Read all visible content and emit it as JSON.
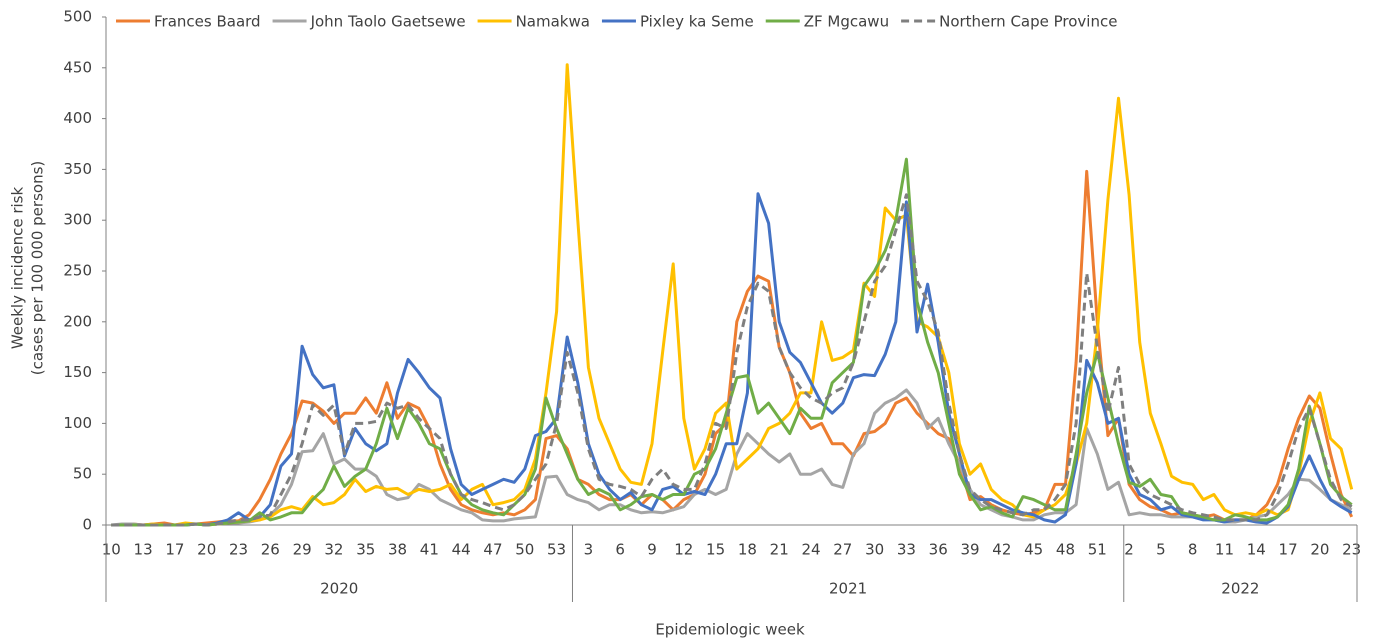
{
  "chart_data": {
    "type": "line",
    "y_label": [
      "Weekly incidence risk",
      "(cases per 100 000 persons)"
    ],
    "x_label": "Epidemiologic week",
    "categories": [
      "10",
      null,
      null,
      "13",
      null,
      null,
      "17",
      null,
      null,
      "20",
      null,
      null,
      "23",
      null,
      null,
      "26",
      null,
      null,
      "29",
      null,
      null,
      "32",
      null,
      null,
      "35",
      null,
      null,
      "38",
      null,
      null,
      "41",
      null,
      null,
      "44",
      null,
      null,
      "47",
      null,
      null,
      "50",
      null,
      null,
      "53",
      null,
      null,
      "3",
      null,
      null,
      "6",
      null,
      null,
      "9",
      null,
      null,
      "12",
      null,
      null,
      "15",
      null,
      null,
      "18",
      null,
      null,
      "21",
      null,
      null,
      "24",
      null,
      null,
      "27",
      null,
      null,
      "30",
      null,
      null,
      "33",
      null,
      null,
      "36",
      null,
      null,
      "39",
      null,
      null,
      "42",
      null,
      null,
      "45",
      null,
      null,
      "48",
      null,
      null,
      "51",
      null,
      null,
      "2",
      null,
      null,
      "5",
      null,
      null,
      "8",
      null,
      null,
      "11",
      null,
      null,
      "14",
      null,
      null,
      "17",
      null,
      null,
      "20",
      null,
      null,
      "23"
    ],
    "x_groups": [
      {
        "label": "2020",
        "size": 44
      },
      {
        "label": "2021",
        "size": 52
      },
      {
        "label": "2022",
        "size": 22
      }
    ],
    "ylim": [
      0,
      500
    ],
    "yticks": [
      0,
      50,
      100,
      150,
      200,
      250,
      300,
      350,
      400,
      450,
      500
    ],
    "grid": false,
    "legend": "top",
    "series": [
      {
        "name": "Frances Baard",
        "color": "#ED7D31",
        "dashed": false,
        "values": [
          0,
          0,
          1,
          0,
          1,
          2,
          0,
          1,
          1,
          2,
          3,
          4,
          4,
          10,
          25,
          45,
          70,
          90,
          122,
          120,
          112,
          100,
          110,
          110,
          125,
          110,
          140,
          105,
          120,
          115,
          95,
          60,
          35,
          20,
          15,
          12,
          10,
          12,
          10,
          15,
          25,
          85,
          88,
          75,
          45,
          40,
          30,
          25,
          25,
          30,
          20,
          30,
          25,
          15,
          25,
          30,
          50,
          90,
          100,
          200,
          230,
          245,
          240,
          175,
          150,
          110,
          95,
          100,
          80,
          80,
          68,
          90,
          92,
          100,
          120,
          125,
          110,
          100,
          90,
          85,
          60,
          25,
          28,
          20,
          15,
          12,
          10,
          12,
          15,
          40,
          40,
          160,
          348,
          200,
          88,
          105,
          40,
          25,
          18,
          15,
          10,
          12,
          10,
          8,
          10,
          5,
          5,
          5,
          10,
          20,
          40,
          75,
          105,
          127,
          115,
          70,
          30,
          8
        ]
      },
      {
        "name": "John Taolo Gaetsewe",
        "color": "#A5A5A5",
        "dashed": false,
        "values": [
          0,
          1,
          1,
          0,
          0,
          0,
          0,
          0,
          1,
          0,
          1,
          2,
          2,
          3,
          5,
          10,
          20,
          40,
          72,
          73,
          90,
          60,
          65,
          55,
          55,
          48,
          30,
          25,
          27,
          40,
          35,
          25,
          20,
          15,
          12,
          5,
          4,
          4,
          6,
          7,
          8,
          47,
          48,
          30,
          25,
          22,
          15,
          20,
          20,
          15,
          12,
          13,
          12,
          15,
          18,
          30,
          35,
          30,
          35,
          70,
          90,
          80,
          70,
          62,
          70,
          50,
          50,
          55,
          40,
          37,
          70,
          80,
          110,
          120,
          125,
          133,
          120,
          95,
          105,
          80,
          60,
          35,
          20,
          15,
          10,
          8,
          5,
          5,
          10,
          12,
          12,
          20,
          95,
          70,
          35,
          42,
          10,
          12,
          10,
          10,
          8,
          8,
          8,
          6,
          5,
          3,
          3,
          5,
          8,
          10,
          20,
          30,
          45,
          44,
          35,
          25,
          20,
          15
        ]
      },
      {
        "name": "Namakwa",
        "color": "#FFC000",
        "dashed": false,
        "values": [
          0,
          0,
          0,
          0,
          1,
          0,
          0,
          2,
          1,
          0,
          1,
          2,
          3,
          4,
          5,
          8,
          15,
          18,
          15,
          28,
          20,
          22,
          30,
          45,
          33,
          38,
          35,
          36,
          30,
          35,
          33,
          35,
          40,
          25,
          35,
          40,
          20,
          22,
          25,
          35,
          65,
          130,
          210,
          453,
          300,
          155,
          105,
          80,
          55,
          42,
          40,
          80,
          170,
          257,
          105,
          55,
          75,
          110,
          120,
          55,
          65,
          75,
          95,
          100,
          110,
          130,
          130,
          200,
          162,
          165,
          172,
          238,
          225,
          312,
          300,
          305,
          200,
          195,
          185,
          150,
          80,
          50,
          60,
          35,
          25,
          20,
          10,
          8,
          15,
          20,
          30,
          60,
          100,
          190,
          320,
          420,
          325,
          180,
          110,
          80,
          48,
          42,
          40,
          25,
          30,
          15,
          10,
          12,
          10,
          15,
          10,
          15,
          50,
          100,
          130,
          85,
          75,
          35
        ]
      },
      {
        "name": "Pixley ka Seme",
        "color": "#4472C4",
        "dashed": false,
        "values": [
          0,
          0,
          0,
          0,
          0,
          0,
          0,
          0,
          1,
          0,
          2,
          5,
          12,
          5,
          8,
          20,
          58,
          70,
          176,
          148,
          135,
          138,
          68,
          95,
          80,
          73,
          80,
          130,
          163,
          150,
          135,
          125,
          75,
          40,
          30,
          35,
          40,
          45,
          42,
          55,
          88,
          92,
          105,
          185,
          140,
          80,
          50,
          35,
          25,
          32,
          20,
          15,
          35,
          38,
          30,
          33,
          30,
          50,
          80,
          80,
          130,
          326,
          297,
          200,
          170,
          160,
          140,
          120,
          110,
          120,
          145,
          148,
          147,
          168,
          200,
          318,
          190,
          237,
          180,
          110,
          70,
          30,
          25,
          25,
          20,
          15,
          12,
          10,
          5,
          3,
          10,
          60,
          162,
          140,
          100,
          105,
          50,
          30,
          25,
          15,
          18,
          10,
          8,
          5,
          5,
          3,
          5,
          5,
          3,
          2,
          8,
          18,
          45,
          68,
          45,
          25,
          18,
          12
        ]
      },
      {
        "name": "ZF Mgcawu",
        "color": "#70AD47",
        "dashed": false,
        "values": [
          0,
          0,
          0,
          0,
          0,
          0,
          0,
          0,
          1,
          0,
          1,
          2,
          3,
          4,
          12,
          5,
          8,
          12,
          12,
          25,
          35,
          58,
          38,
          48,
          55,
          80,
          115,
          85,
          115,
          100,
          80,
          75,
          50,
          30,
          20,
          15,
          12,
          10,
          20,
          30,
          55,
          125,
          95,
          70,
          45,
          30,
          35,
          30,
          15,
          20,
          28,
          30,
          25,
          30,
          30,
          50,
          55,
          75,
          110,
          145,
          147,
          110,
          120,
          105,
          90,
          115,
          105,
          105,
          140,
          150,
          160,
          235,
          250,
          270,
          300,
          360,
          220,
          180,
          150,
          100,
          50,
          30,
          15,
          18,
          12,
          8,
          28,
          25,
          20,
          15,
          15,
          70,
          130,
          170,
          125,
          80,
          42,
          38,
          45,
          30,
          28,
          12,
          10,
          8,
          5,
          5,
          10,
          8,
          5,
          5,
          8,
          20,
          55,
          117,
          80,
          40,
          28,
          20
        ]
      },
      {
        "name": "Northern Cape Province",
        "color": "#7F7F7F",
        "dashed": true,
        "values": [
          0,
          0,
          0,
          0,
          0,
          0,
          0,
          0,
          1,
          0,
          1,
          3,
          5,
          5,
          8,
          10,
          30,
          50,
          80,
          118,
          108,
          118,
          70,
          100,
          100,
          102,
          120,
          115,
          118,
          105,
          95,
          85,
          50,
          30,
          25,
          22,
          18,
          15,
          20,
          30,
          45,
          60,
          100,
          170,
          130,
          75,
          45,
          40,
          38,
          35,
          28,
          45,
          55,
          40,
          35,
          35,
          60,
          100,
          95,
          170,
          215,
          238,
          230,
          175,
          150,
          135,
          125,
          120,
          130,
          135,
          160,
          200,
          240,
          255,
          290,
          325,
          240,
          220,
          190,
          120,
          70,
          35,
          25,
          18,
          15,
          12,
          10,
          15,
          15,
          25,
          40,
          100,
          248,
          175,
          110,
          155,
          60,
          40,
          30,
          25,
          20,
          15,
          12,
          10,
          8,
          5,
          5,
          5,
          5,
          10,
          30,
          60,
          95,
          115,
          80,
          45,
          25,
          18
        ]
      }
    ]
  }
}
